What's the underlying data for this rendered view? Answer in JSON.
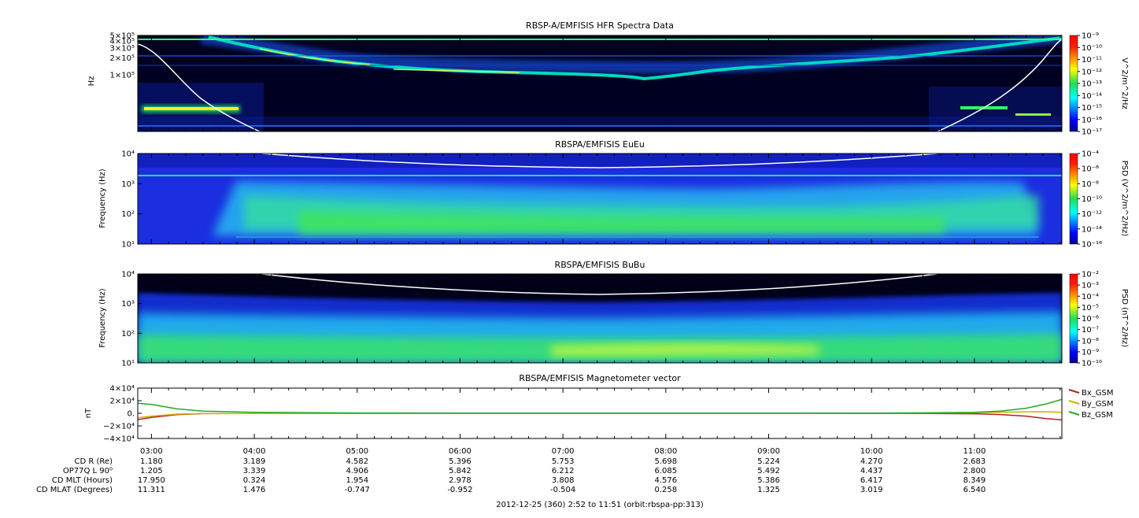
{
  "chart_data": [
    {
      "id": "hfr",
      "type": "heatmap",
      "title": "RBSP-A/EMFISIS  HFR Spectra Data",
      "ylabel": "Hz",
      "yscale": "log",
      "ylim": [
        10000,
        500000
      ],
      "yticks": [
        {
          "value": 500000,
          "label": "5×10⁵"
        },
        {
          "value": 400000,
          "label": "4×10⁵"
        },
        {
          "value": 300000,
          "label": "3×10⁵"
        },
        {
          "value": 200000,
          "label": "2×10⁵"
        },
        {
          "value": 100000,
          "label": "1×10⁵"
        }
      ],
      "colorbar_label": "V^2/m^2/Hz",
      "colorbar_ticks": [
        "10⁻⁹",
        "10⁻¹⁰",
        "10⁻¹¹",
        "10⁻¹²",
        "10⁻¹³",
        "10⁻¹⁴",
        "10⁻¹⁵",
        "10⁻¹⁶",
        "10⁻¹⁷"
      ],
      "background": "#000022"
    },
    {
      "id": "eueu",
      "type": "heatmap",
      "title": "RBSPA/EMFISIS  EuEu",
      "ylabel": "Frequency (Hz)",
      "yscale": "log",
      "ylim": [
        10,
        10000
      ],
      "yticks": [
        {
          "value": 10000,
          "label": "10⁴"
        },
        {
          "value": 1000,
          "label": "10³"
        },
        {
          "value": 100,
          "label": "10²"
        },
        {
          "value": 10,
          "label": "10¹"
        }
      ],
      "colorbar_label": "PSD (V^2/m^2/Hz)",
      "colorbar_ticks": [
        "10⁻⁴",
        "10⁻⁶",
        "10⁻⁸",
        "10⁻¹⁰",
        "10⁻¹²",
        "10⁻¹⁴",
        "10⁻¹⁶"
      ],
      "background": "#1a2bd8"
    },
    {
      "id": "bubu",
      "type": "heatmap",
      "title": "RBSPA/EMFISIS  BuBu",
      "ylabel": "Frequency (Hz)",
      "yscale": "log",
      "ylim": [
        10,
        10000
      ],
      "yticks": [
        {
          "value": 10000,
          "label": "10⁴"
        },
        {
          "value": 1000,
          "label": "10³"
        },
        {
          "value": 100,
          "label": "10²"
        },
        {
          "value": 10,
          "label": "10¹"
        }
      ],
      "colorbar_label": "PSD (nT^2/Hz)",
      "colorbar_ticks": [
        "10⁻²",
        "10⁻³",
        "10⁻⁴",
        "10⁻⁵",
        "10⁻⁶",
        "10⁻⁷",
        "10⁻⁸",
        "10⁻⁹",
        "10⁻¹⁰"
      ],
      "background": "#000018"
    },
    {
      "id": "mag",
      "type": "line",
      "title": "RBSPA/EMFISIS  Magnetometer vector",
      "ylabel": "nT",
      "ylim": [
        -40000,
        40000
      ],
      "yticks": [
        {
          "value": 40000,
          "label": "4×10⁴"
        },
        {
          "value": 20000,
          "label": "2×10⁴"
        },
        {
          "value": 0,
          "label": "0."
        },
        {
          "value": -20000,
          "label": "−2×10⁴"
        },
        {
          "value": -40000,
          "label": "−4×10⁴"
        }
      ],
      "x_hours": [
        2.867,
        3.0,
        3.25,
        3.5,
        4.0,
        5.0,
        6.0,
        7.0,
        8.0,
        9.0,
        10.0,
        10.5,
        11.0,
        11.25,
        11.5,
        11.7,
        11.85
      ],
      "series": [
        {
          "name": "Bx_GSM",
          "color": "#b22222",
          "values": [
            -10000,
            -6500,
            -2000,
            -500,
            -200,
            -100,
            -50,
            0,
            0,
            0,
            -100,
            -300,
            -800,
            -2000,
            -4500,
            -8500,
            -10500
          ]
        },
        {
          "name": "By_GSM",
          "color": "#c8b400",
          "values": [
            -7000,
            -4500,
            -1200,
            -400,
            -200,
            -100,
            -50,
            0,
            0,
            0,
            0,
            300,
            1000,
            1800,
            2400,
            2500,
            1500
          ]
        },
        {
          "name": "Bz_GSM",
          "color": "#22aa22",
          "values": [
            16000,
            14000,
            7000,
            3500,
            1500,
            500,
            300,
            200,
            200,
            300,
            400,
            600,
            1500,
            3500,
            8000,
            15000,
            22000
          ]
        }
      ]
    }
  ],
  "time_axis": {
    "start_hours": 2.867,
    "end_hours": 11.85,
    "labels": [
      {
        "hours": 3,
        "label": "03:00"
      },
      {
        "hours": 4,
        "label": "04:00"
      },
      {
        "hours": 5,
        "label": "05:00"
      },
      {
        "hours": 6,
        "label": "06:00"
      },
      {
        "hours": 7,
        "label": "07:00"
      },
      {
        "hours": 8,
        "label": "08:00"
      },
      {
        "hours": 9,
        "label": "09:00"
      },
      {
        "hours": 10,
        "label": "10:00"
      },
      {
        "hours": 11,
        "label": "11:00"
      }
    ]
  },
  "ephemeris": {
    "rows": [
      {
        "label": "CD R (Re)",
        "values": [
          "1.180",
          "3.189",
          "4.582",
          "5.396",
          "5.753",
          "5.698",
          "5.224",
          "4.270",
          "2.683"
        ]
      },
      {
        "label": "OP77Q L 90⁰",
        "values": [
          "1.205",
          "3.339",
          "4.906",
          "5.842",
          "6.212",
          "6.085",
          "5.492",
          "4.437",
          "2.800"
        ]
      },
      {
        "label": "CD MLT (Hours)",
        "values": [
          "17.950",
          "0.324",
          "1.954",
          "2.978",
          "3.808",
          "4.576",
          "5.386",
          "6.417",
          "8.349"
        ]
      },
      {
        "label": "CD MLAT (Degrees)",
        "values": [
          "11.311",
          "1.476",
          "-0.747",
          "-0.952",
          "-0.504",
          "0.258",
          "1.325",
          "3.019",
          "6.540"
        ]
      }
    ]
  },
  "footer": "2012-12-25 (360) 2:52 to 11:51 (orbit:rbspa-pp:313)"
}
